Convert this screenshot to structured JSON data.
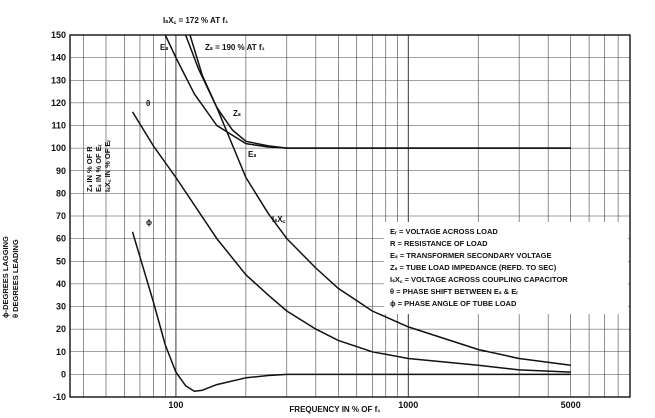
{
  "chart_data": {
    "type": "line",
    "title": "",
    "xlabel": "FREQUENCY IN % OF f₁",
    "x_scale": "log",
    "xlim": [
      35,
      9000
    ],
    "ylim": [
      -10,
      150
    ],
    "grid": true,
    "x_ticks": [
      100,
      1000,
      5000
    ],
    "x_tick_labels": [
      "100",
      "1000",
      "5000"
    ],
    "y_ticks": [
      -10,
      0,
      10,
      20,
      30,
      40,
      50,
      60,
      70,
      80,
      90,
      100,
      110,
      120,
      130,
      140,
      150
    ],
    "y_tick_labels": [
      "-10",
      "0",
      "10",
      "20",
      "30",
      "40",
      "50",
      "60",
      "70",
      "80",
      "90",
      "100",
      "110",
      "120",
      "130",
      "140",
      "150"
    ],
    "ylabels": [
      "ϕ-DEGREES LAGGING",
      "θ DEGREES LEADING",
      "Zₛ IN % OF R",
      "Eₛ IN % OF Eᵣ",
      "IₛX꜀ IN % OF Eᵣ"
    ],
    "series": [
      {
        "name": "Eₛ",
        "x": [
          90,
          100,
          120,
          150,
          200,
          250,
          300,
          500,
          1000,
          3000,
          5000
        ],
        "y": [
          150,
          140,
          124,
          110,
          102,
          100.5,
          100,
          100,
          100,
          100,
          100
        ]
      },
      {
        "name": "Zₛ",
        "x": [
          110,
          125,
          150,
          175,
          200,
          250,
          300,
          500,
          1000,
          3000,
          5000
        ],
        "y": [
          150,
          135,
          118,
          108,
          103,
          101,
          100,
          100,
          100,
          100,
          100
        ]
      },
      {
        "name": "IₛX꜀",
        "x": [
          115,
          130,
          150,
          200,
          250,
          300,
          400,
          500,
          700,
          1000,
          2000,
          3000,
          5000
        ],
        "y": [
          150,
          132,
          118,
          87,
          71,
          60,
          47,
          38,
          28,
          21,
          11,
          7,
          4
        ]
      },
      {
        "name": "θ",
        "x": [
          65,
          80,
          100,
          150,
          200,
          250,
          300,
          400,
          500,
          700,
          1000,
          2000,
          3000,
          5000
        ],
        "y": [
          116,
          101,
          87,
          60,
          44,
          35,
          28,
          20,
          15,
          10,
          7,
          4,
          2,
          1
        ]
      },
      {
        "name": "ϕ",
        "x": [
          65,
          70,
          80,
          90,
          100,
          110,
          120,
          130,
          150,
          200,
          250,
          300,
          500,
          1000,
          5000
        ],
        "y": [
          63,
          52,
          32,
          13,
          1,
          -5,
          -7.5,
          -7,
          -4.5,
          -1.5,
          -0.5,
          0,
          0,
          0,
          0
        ]
      }
    ],
    "annotations": [
      {
        "text": "IₛX꜀ = 172 % AT f₁"
      },
      {
        "text": "Zₛ = 190 % AT f₁"
      },
      {
        "text": "Eₛ"
      },
      {
        "text": "Zₛ"
      },
      {
        "text": "Eₛ"
      },
      {
        "text": "IₛX꜀"
      },
      {
        "text": "θ"
      },
      {
        "text": "ϕ"
      }
    ],
    "legend": {
      "placement": "right",
      "entries": [
        "Eᵣ = VOLTAGE ACROSS LOAD",
        "R = RESISTANCE OF LOAD",
        "Eₛ = TRANSFORMER SECONDARY VOLTAGE",
        "Zₛ = TUBE LOAD IMPEDANCE (REFD. TO SEC)",
        "IₛX꜀ = VOLTAGE ACROSS COUPLING CAPACITOR",
        "θ = PHASE SHIFT BETWEEN Eₛ & Eᵣ",
        "ϕ = PHASE ANGLE OF TUBE LOAD"
      ]
    }
  }
}
